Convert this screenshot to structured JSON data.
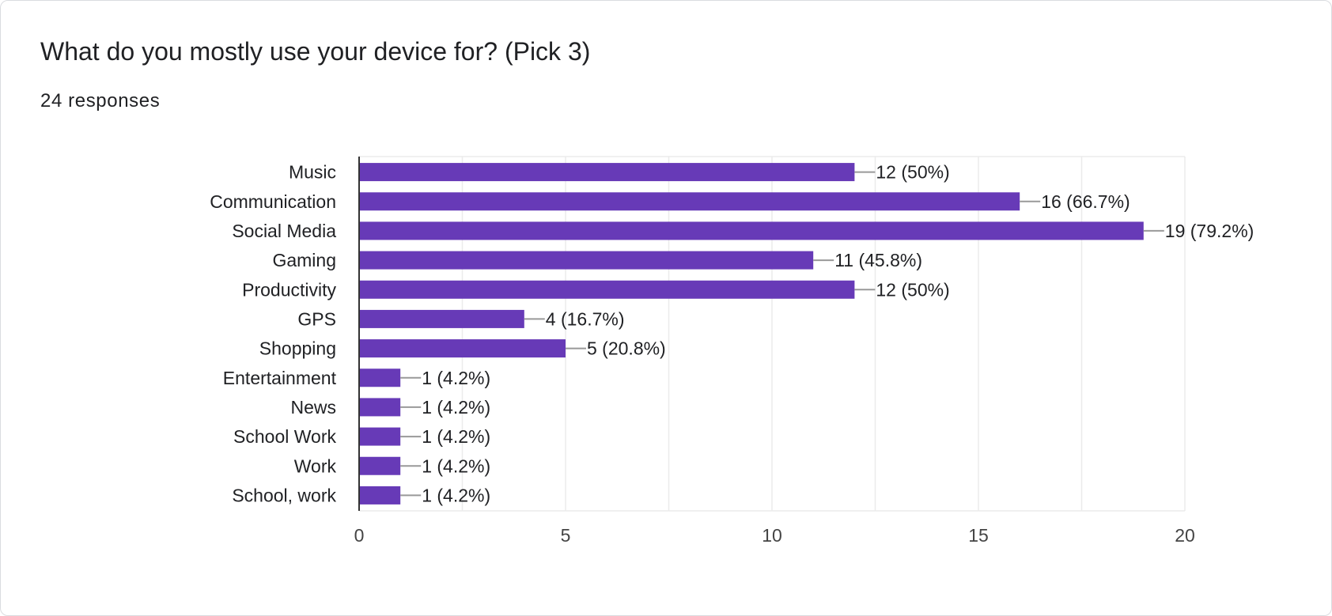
{
  "card": {
    "title": "What do you mostly use your device for? (Pick 3)",
    "subtitle": "24 responses"
  },
  "colors": {
    "bar": "#673ab7",
    "grid": "#ebebeb",
    "axis": "#333333",
    "leader": "#999999",
    "text": "#202124"
  },
  "chart_data": {
    "type": "bar",
    "orientation": "horizontal",
    "categories": [
      "Music",
      "Communication",
      "Social Media",
      "Gaming",
      "Productivity",
      "GPS",
      "Shopping",
      "Entertainment",
      "News",
      "School Work",
      "Work",
      "School, work"
    ],
    "values": [
      12,
      16,
      19,
      11,
      12,
      4,
      5,
      1,
      1,
      1,
      1,
      1
    ],
    "data_labels": [
      "12 (50%)",
      "16 (66.7%)",
      "19 (79.2%)",
      "11 (45.8%)",
      "12 (50%)",
      "4 (16.7%)",
      "5 (20.8%)",
      "1 (4.2%)",
      "1 (4.2%)",
      "1 (4.2%)",
      "1 (4.2%)",
      "1 (4.2%)"
    ],
    "xlim": [
      0,
      20
    ],
    "xticks": [
      0,
      5,
      10,
      15,
      20
    ],
    "grid": true,
    "legend": "none"
  }
}
